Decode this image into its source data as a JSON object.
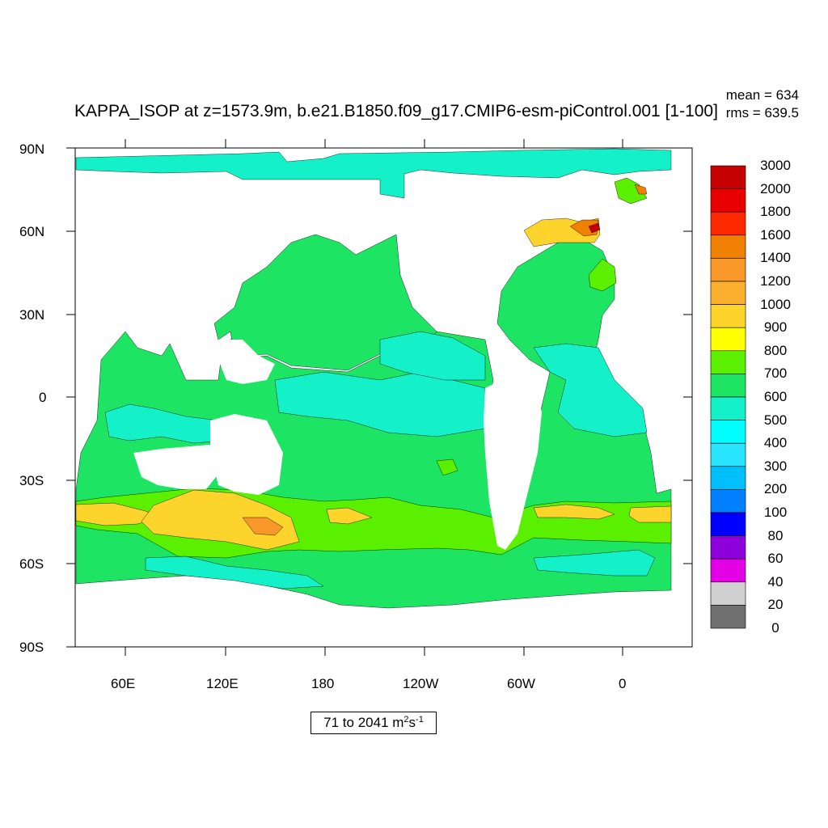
{
  "title": "KAPPA_ISOP at z=1573.9m, b.e21.B1850.f09_g17.CMIP6-esm-piControl.001 [1-100]",
  "stats": {
    "mean": "mean = 634",
    "rms": "rms = 639.5"
  },
  "units": {
    "range": "71 to 2041 m",
    "sup1": "2",
    "mid": " s",
    "sup2": "-1"
  },
  "axes": {
    "lat_labels": [
      "90N",
      "60N",
      "30N",
      "0",
      "30S",
      "60S",
      "90S"
    ],
    "lon_labels": [
      "60E",
      "120E",
      "180",
      "120W",
      "60W",
      "0"
    ]
  },
  "colorbar": {
    "levels": [
      "3000",
      "2000",
      "1800",
      "1600",
      "1400",
      "1200",
      "1000",
      "900",
      "800",
      "700",
      "600",
      "500",
      "400",
      "300",
      "200",
      "100",
      "80",
      "60",
      "40",
      "20",
      "0"
    ],
    "colors": [
      "#c40000",
      "#e80000",
      "#ff2a00",
      "#f08000",
      "#f89828",
      "#fcb030",
      "#fcd42c",
      "#ffff00",
      "#5af000",
      "#1ee464",
      "#14f0c8",
      "#00ffff",
      "#28e4ff",
      "#00c0fc",
      "#0080ff",
      "#0000ff",
      "#8c00dc",
      "#e400e4",
      "#d0d0d0",
      "#707070"
    ]
  },
  "legend": {
    "ocean_colors": {
      "green": "#1ee464",
      "cyan": "#14f0c8",
      "lime": "#5af000",
      "yellow": "#fcd42c",
      "orange": "#fcb030",
      "darkorange": "#f08000",
      "red": "#ff2a00",
      "land": "#ffffff"
    }
  }
}
